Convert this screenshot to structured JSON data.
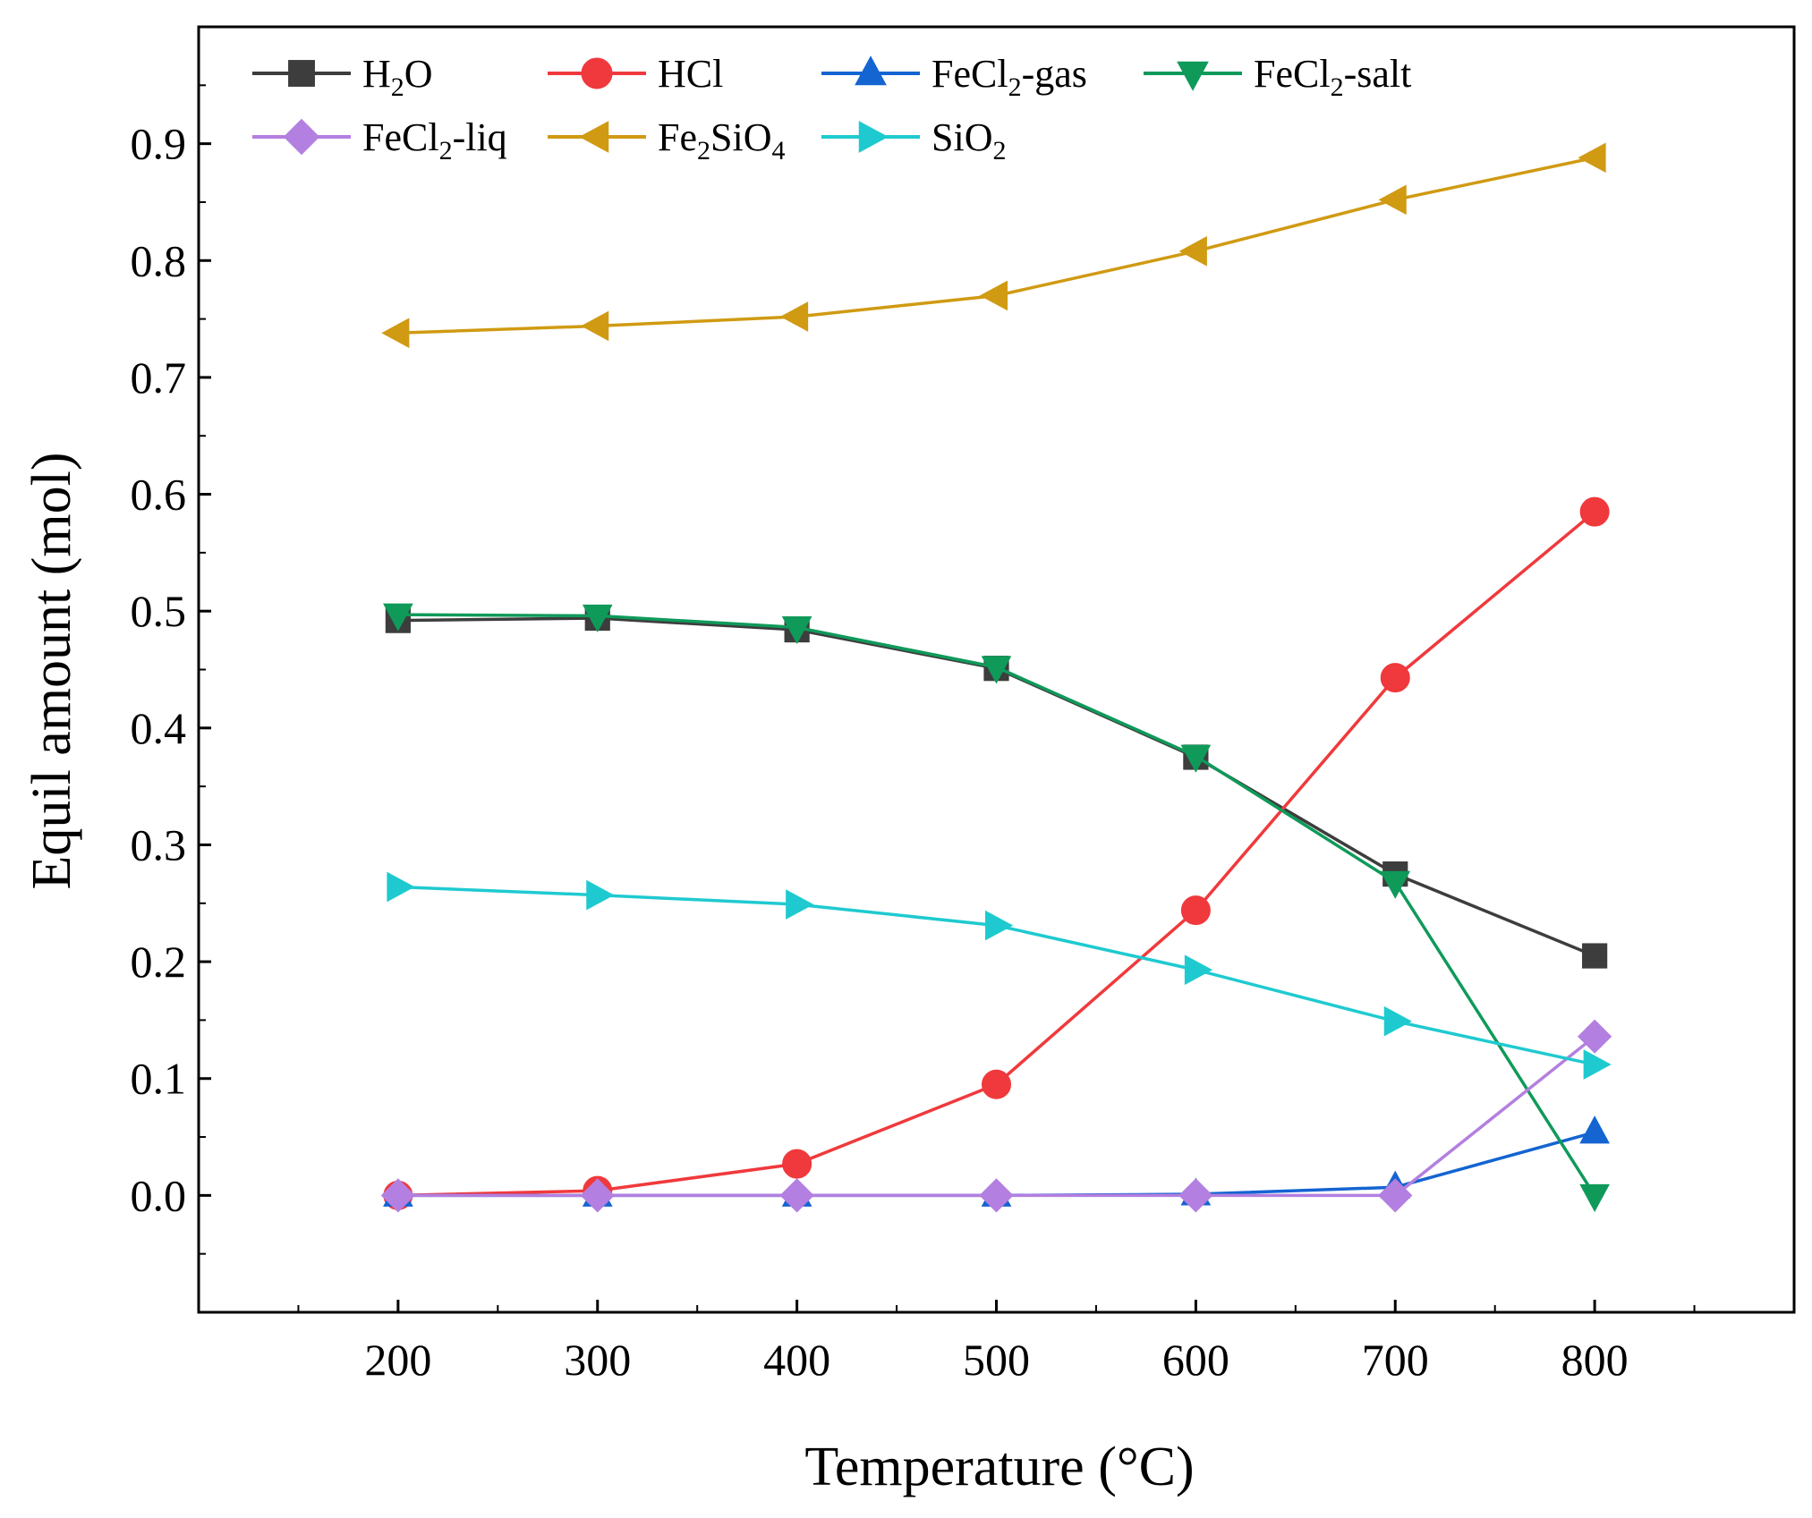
{
  "chart_data": {
    "type": "line",
    "title": "",
    "xlabel": "Temperature (°C)",
    "ylabel": "Equil amount (mol)",
    "x": [
      200,
      300,
      400,
      500,
      600,
      700,
      800
    ],
    "xlim": [
      100,
      900
    ],
    "ylim": [
      -0.1,
      1.0
    ],
    "xticks": [
      "200",
      "300",
      "400",
      "500",
      "600",
      "700",
      "800"
    ],
    "yticks": [
      "0.0",
      "0.1",
      "0.2",
      "0.3",
      "0.4",
      "0.5",
      "0.6",
      "0.7",
      "0.8",
      "0.9"
    ],
    "grid": false,
    "legend_position": "top-left",
    "series": [
      {
        "name": "H2O",
        "label_base": "H",
        "label_sub": "2",
        "label_tail": "O",
        "marker": "square",
        "color": "#3d3d3d",
        "values": [
          0.492,
          0.494,
          0.484,
          0.451,
          0.375,
          0.275,
          0.205
        ]
      },
      {
        "name": "HCl",
        "label_base": "HCl",
        "label_sub": "",
        "label_tail": "",
        "marker": "circle",
        "color": "#f0393c",
        "values": [
          0.0,
          0.004,
          0.027,
          0.095,
          0.244,
          0.443,
          0.585
        ]
      },
      {
        "name": "FeCl2-gas",
        "label_base": "FeCl",
        "label_sub": "2",
        "label_tail": "-gas",
        "marker": "triangle-up",
        "color": "#1464d2",
        "values": [
          0.0,
          0.0,
          0.0,
          0.0,
          0.001,
          0.007,
          0.054
        ]
      },
      {
        "name": "FeCl2-salt",
        "label_base": "FeCl",
        "label_sub": "2",
        "label_tail": "-salt",
        "marker": "triangle-down",
        "color": "#0f9a5a",
        "values": [
          0.497,
          0.496,
          0.486,
          0.452,
          0.376,
          0.268,
          0.0
        ]
      },
      {
        "name": "FeCl2-liq",
        "label_base": "FeCl",
        "label_sub": "2",
        "label_tail": "-liq",
        "marker": "diamond",
        "color": "#b37fe0",
        "values": [
          0.0,
          0.0,
          0.0,
          0.0,
          0.0,
          0.0,
          0.136
        ]
      },
      {
        "name": "Fe2SiO4",
        "label_base": "Fe",
        "label_sub": "2",
        "label_tail": "SiO",
        "label_sub2": "4",
        "marker": "triangle-left",
        "color": "#d09a12",
        "values": [
          0.738,
          0.744,
          0.752,
          0.77,
          0.808,
          0.852,
          0.888
        ]
      },
      {
        "name": "SiO2",
        "label_base": "SiO",
        "label_sub": "2",
        "label_tail": "",
        "marker": "triangle-right",
        "color": "#1ecad0",
        "values": [
          0.264,
          0.257,
          0.249,
          0.231,
          0.193,
          0.149,
          0.112
        ]
      }
    ]
  }
}
